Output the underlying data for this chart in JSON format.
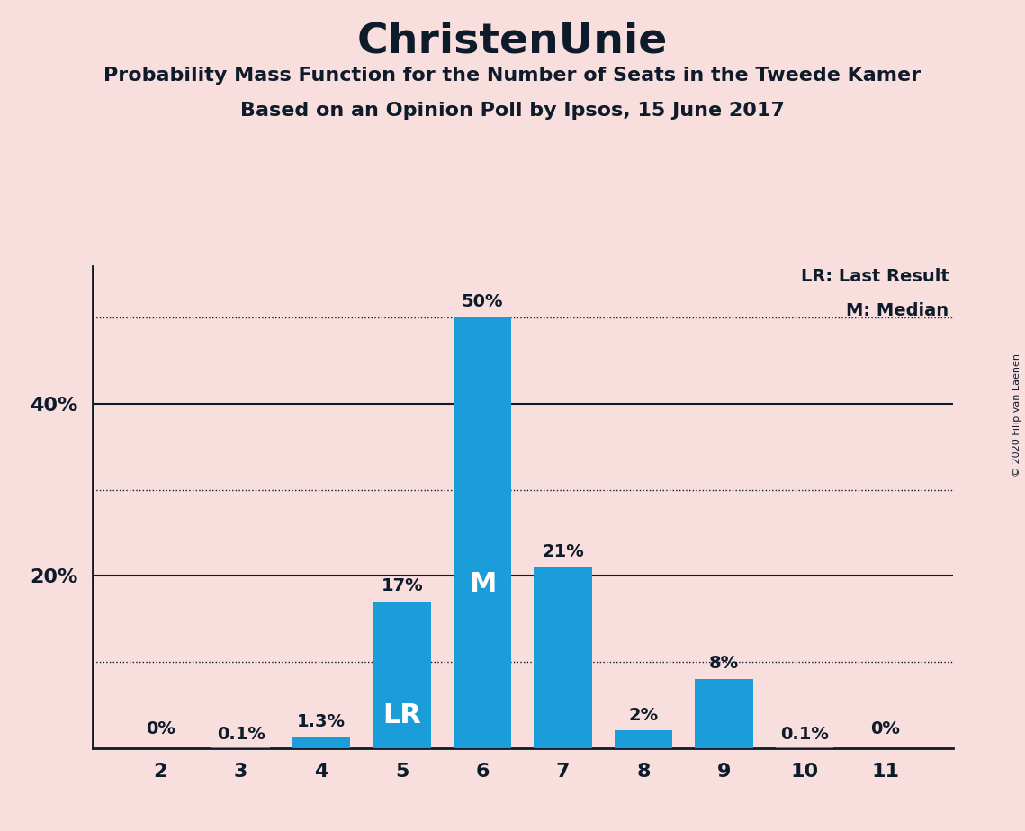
{
  "title": "ChristenUnie",
  "subtitle1": "Probability Mass Function for the Number of Seats in the Tweede Kamer",
  "subtitle2": "Based on an Opinion Poll by Ipsos, 15 June 2017",
  "copyright": "© 2020 Filip van Laenen",
  "categories": [
    2,
    3,
    4,
    5,
    6,
    7,
    8,
    9,
    10,
    11
  ],
  "values": [
    0.0,
    0.1,
    1.3,
    17.0,
    50.0,
    21.0,
    2.0,
    8.0,
    0.1,
    0.0
  ],
  "labels": [
    "0%",
    "0.1%",
    "1.3%",
    "17%",
    "50%",
    "21%",
    "2%",
    "8%",
    "0.1%",
    "0%"
  ],
  "bar_color": "#1B9DD9",
  "background_color": "#F9DEDE",
  "text_color": "#0D1B2A",
  "ylim": [
    0,
    56
  ],
  "dotted_lines": [
    10,
    30,
    50
  ],
  "solid_lines": [
    20,
    40
  ],
  "legend_lr": "LR: Last Result",
  "legend_m": "M: Median",
  "median_seat": 6,
  "lr_seat": 5,
  "label_inside_bars": {
    "5": "LR",
    "6": "M"
  },
  "label_color_inside": "#FFFFFF",
  "bar_width": 0.72
}
